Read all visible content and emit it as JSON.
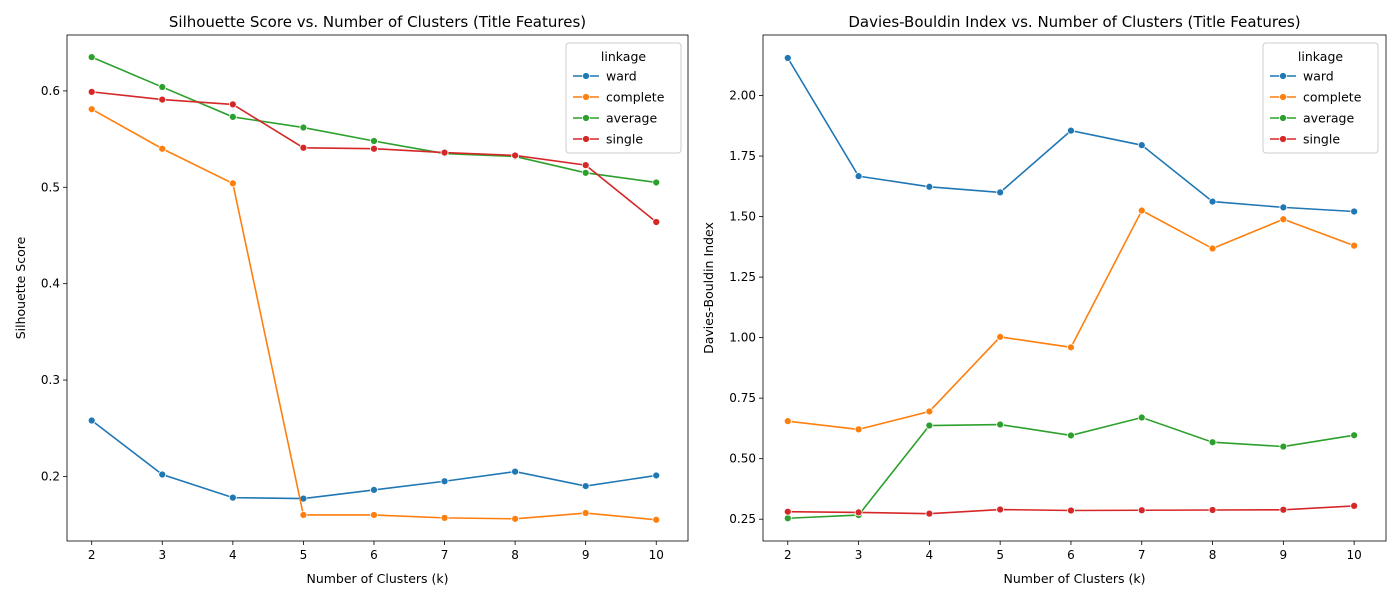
{
  "chart_data": [
    {
      "type": "line",
      "title": "Silhouette Score vs. Number of Clusters (Title Features)",
      "xlabel": "Number of Clusters (k)",
      "ylabel": "Silhouette Score",
      "x": [
        2,
        3,
        4,
        5,
        6,
        7,
        8,
        9,
        10
      ],
      "xlim": [
        1.65,
        10.45
      ],
      "ylim": [
        0.133,
        0.658
      ],
      "yticks": [
        0.2,
        0.3,
        0.4,
        0.5,
        0.6
      ],
      "ytick_labels": [
        "0.2",
        "0.3",
        "0.4",
        "0.5",
        "0.6"
      ],
      "grid": false,
      "legend": {
        "title": "linkage",
        "position": "top-right"
      },
      "series": [
        {
          "name": "ward",
          "color": "#1f77b4",
          "values": [
            0.258,
            0.202,
            0.178,
            0.177,
            0.186,
            0.195,
            0.205,
            0.19,
            0.201
          ]
        },
        {
          "name": "complete",
          "color": "#ff7f0e",
          "values": [
            0.581,
            0.54,
            0.504,
            0.16,
            0.16,
            0.157,
            0.156,
            0.162,
            0.155
          ]
        },
        {
          "name": "average",
          "color": "#2ca02c",
          "values": [
            0.635,
            0.604,
            0.573,
            0.562,
            0.548,
            0.535,
            0.532,
            0.515,
            0.505
          ]
        },
        {
          "name": "single",
          "color": "#d62728",
          "values": [
            0.599,
            0.591,
            0.586,
            0.541,
            0.54,
            0.536,
            0.533,
            0.523,
            0.464
          ]
        }
      ]
    },
    {
      "type": "line",
      "title": "Davies-Bouldin Index vs. Number of Clusters (Title Features)",
      "xlabel": "Number of Clusters (k)",
      "ylabel": "Davies-Bouldin Index",
      "x": [
        2,
        3,
        4,
        5,
        6,
        7,
        8,
        9,
        10
      ],
      "xlim": [
        1.65,
        10.45
      ],
      "ylim": [
        0.16,
        2.25
      ],
      "yticks": [
        0.25,
        0.5,
        0.75,
        1.0,
        1.25,
        1.5,
        1.75,
        2.0
      ],
      "ytick_labels": [
        "0.25",
        "0.50",
        "0.75",
        "1.00",
        "1.25",
        "1.50",
        "1.75",
        "2.00"
      ],
      "grid": false,
      "legend": {
        "title": "linkage",
        "position": "top-right"
      },
      "series": [
        {
          "name": "ward",
          "color": "#1f77b4",
          "values": [
            2.155,
            1.667,
            1.623,
            1.6,
            1.855,
            1.795,
            1.562,
            1.538,
            1.521
          ]
        },
        {
          "name": "complete",
          "color": "#ff7f0e",
          "values": [
            0.655,
            0.621,
            0.695,
            1.003,
            0.96,
            1.525,
            1.368,
            1.489,
            1.38
          ]
        },
        {
          "name": "average",
          "color": "#2ca02c",
          "values": [
            0.254,
            0.267,
            0.637,
            0.641,
            0.596,
            0.67,
            0.568,
            0.55,
            0.597
          ]
        },
        {
          "name": "single",
          "color": "#d62728",
          "values": [
            0.281,
            0.278,
            0.273,
            0.29,
            0.286,
            0.287,
            0.288,
            0.289,
            0.305
          ]
        }
      ]
    }
  ]
}
